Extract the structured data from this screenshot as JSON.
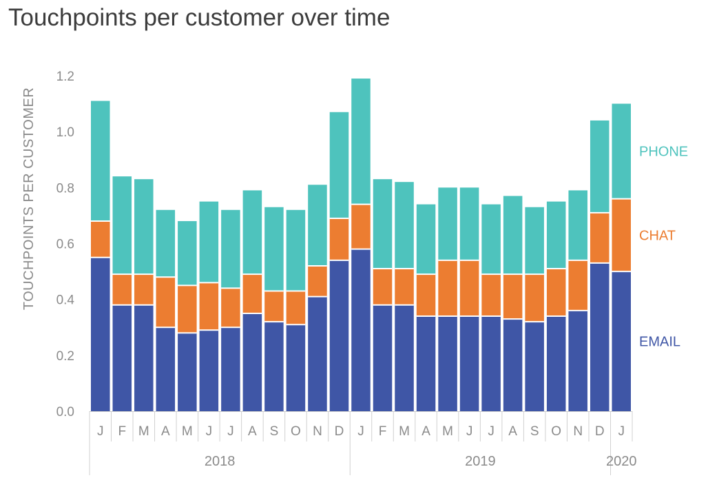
{
  "title": "Touchpoints per customer over time",
  "chart_data": {
    "type": "bar",
    "stacked": true,
    "title": "Touchpoints per customer over time",
    "ylabel": "TOUCHPOINTS PER CUSTOMER",
    "xlabel": "",
    "ylim": [
      0,
      1.2
    ],
    "yticks": [
      "0.0",
      "0.2",
      "0.4",
      "0.6",
      "0.8",
      "1.0",
      "1.2"
    ],
    "categories": [
      "J",
      "F",
      "M",
      "A",
      "M",
      "J",
      "J",
      "A",
      "S",
      "O",
      "N",
      "D",
      "J",
      "F",
      "M",
      "A",
      "M",
      "J",
      "J",
      "A",
      "S",
      "O",
      "N",
      "D",
      "J"
    ],
    "years": [
      {
        "label": "2018",
        "start": 0,
        "end": 11
      },
      {
        "label": "2019",
        "start": 12,
        "end": 23
      },
      {
        "label": "2020",
        "start": 24,
        "end": 24
      }
    ],
    "series": [
      {
        "name": "EMAIL",
        "color": "#3f56a6",
        "values": [
          0.55,
          0.38,
          0.38,
          0.3,
          0.28,
          0.29,
          0.3,
          0.35,
          0.32,
          0.31,
          0.41,
          0.54,
          0.58,
          0.38,
          0.38,
          0.34,
          0.34,
          0.34,
          0.34,
          0.33,
          0.32,
          0.34,
          0.36,
          0.53,
          0.5
        ]
      },
      {
        "name": "CHAT",
        "color": "#ec7d31",
        "values": [
          0.13,
          0.11,
          0.11,
          0.18,
          0.17,
          0.17,
          0.14,
          0.14,
          0.11,
          0.12,
          0.11,
          0.15,
          0.16,
          0.13,
          0.13,
          0.15,
          0.2,
          0.2,
          0.15,
          0.16,
          0.17,
          0.17,
          0.18,
          0.18,
          0.26
        ]
      },
      {
        "name": "PHONE",
        "color": "#4ec3bd",
        "values": [
          0.43,
          0.35,
          0.34,
          0.24,
          0.23,
          0.29,
          0.28,
          0.3,
          0.3,
          0.29,
          0.29,
          0.38,
          0.45,
          0.32,
          0.31,
          0.25,
          0.26,
          0.26,
          0.25,
          0.28,
          0.24,
          0.24,
          0.25,
          0.33,
          0.34
        ]
      }
    ],
    "legend_position": "right, aligned with last bar",
    "grid": false
  }
}
